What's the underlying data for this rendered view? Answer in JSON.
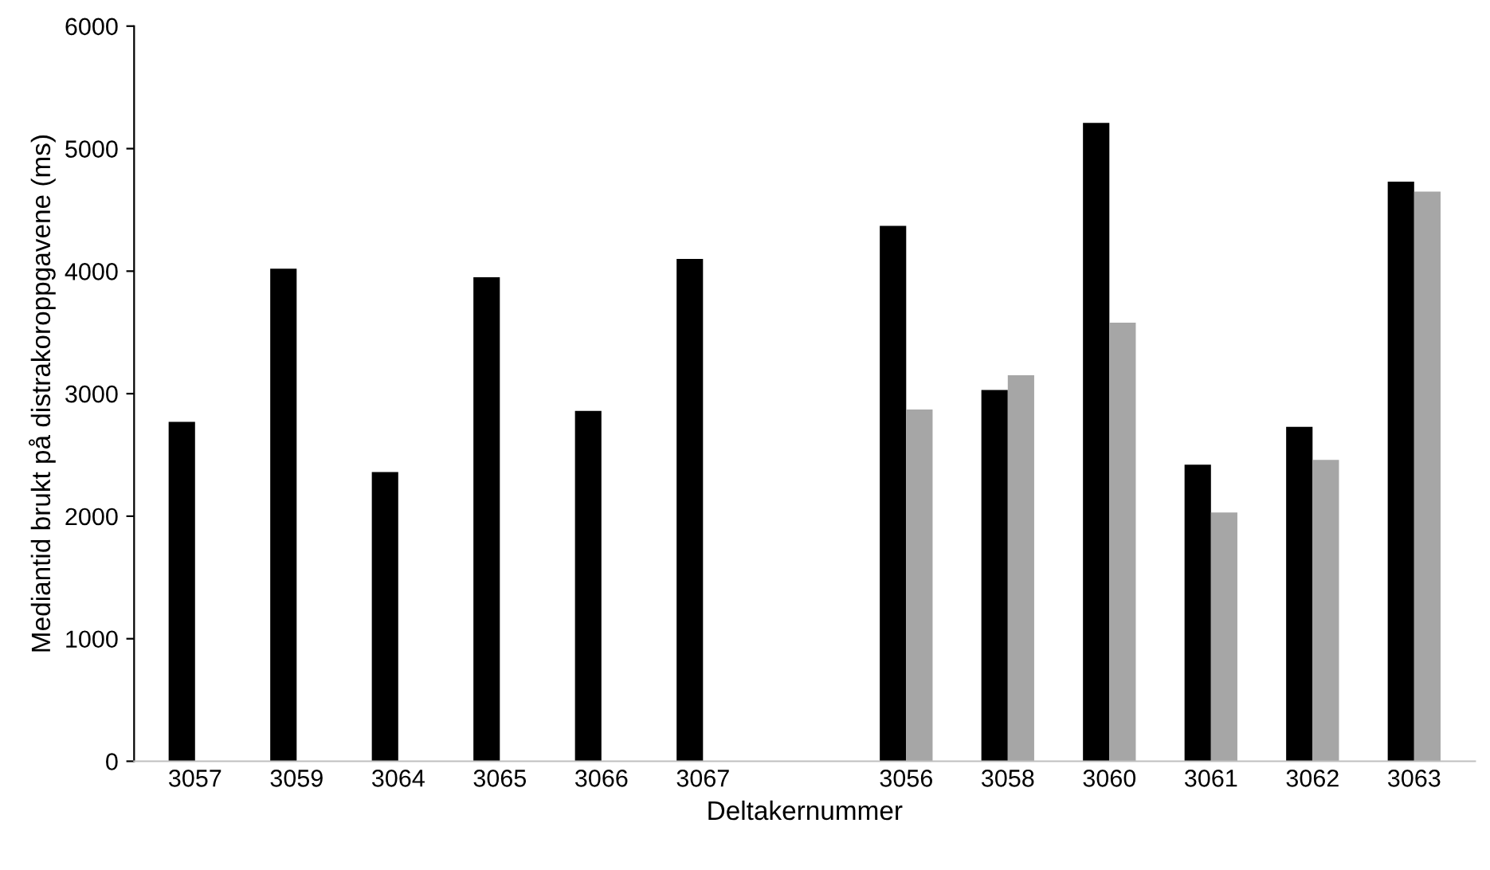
{
  "chart_data": {
    "type": "bar",
    "xlabel": "Deltakernummer",
    "ylabel": "Mediantid brukt på distrakoroppgavene (ms)",
    "categories": [
      "3057",
      "3059",
      "3064",
      "3065",
      "3066",
      "3067",
      null,
      "3056",
      "3058",
      "3060",
      "3061",
      "3062",
      "3063"
    ],
    "series": [
      {
        "color": "#000000",
        "values": [
          2770,
          4020,
          2360,
          3950,
          2860,
          4100,
          null,
          4370,
          3030,
          5210,
          2420,
          2730,
          4730
        ]
      },
      {
        "color": "#a6a6a6",
        "values": [
          null,
          null,
          null,
          null,
          null,
          null,
          null,
          2870,
          3150,
          3580,
          2030,
          2460,
          4650
        ]
      }
    ],
    "ylim": [
      0,
      6000
    ],
    "yticks": [
      0,
      1000,
      2000,
      3000,
      4000,
      5000,
      6000
    ],
    "grid": false,
    "legend": false
  }
}
